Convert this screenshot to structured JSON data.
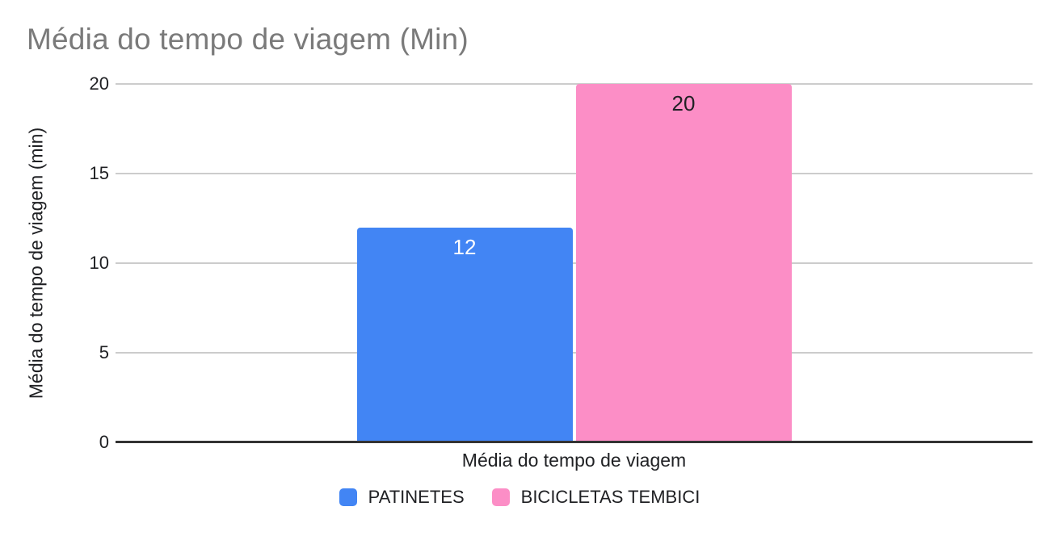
{
  "chart_data": {
    "type": "bar",
    "title": "Média do tempo de viagem (Min)",
    "xlabel": "Média do tempo de viagem",
    "ylabel": "Média do tempo de viagem (min)",
    "categories": [
      "Média do tempo de viagem"
    ],
    "series": [
      {
        "name": "PATINETES",
        "values": [
          12
        ],
        "color": "#4285F4",
        "value_label_color": "#FFFFFF"
      },
      {
        "name": "BICICLETAS TEMBICI",
        "values": [
          20
        ],
        "color": "#FC8EC6",
        "value_label_color": "#202124"
      }
    ],
    "ylim": [
      0,
      20
    ],
    "yticks": [
      0,
      5,
      10,
      15,
      20
    ],
    "grid": true,
    "legend_position": "bottom"
  },
  "colors": {
    "background": "#FFFFFF",
    "title_text": "#7A7A7A",
    "axis_text": "#202124",
    "gridline": "#CCCCCC",
    "axis_line": "#333333"
  }
}
